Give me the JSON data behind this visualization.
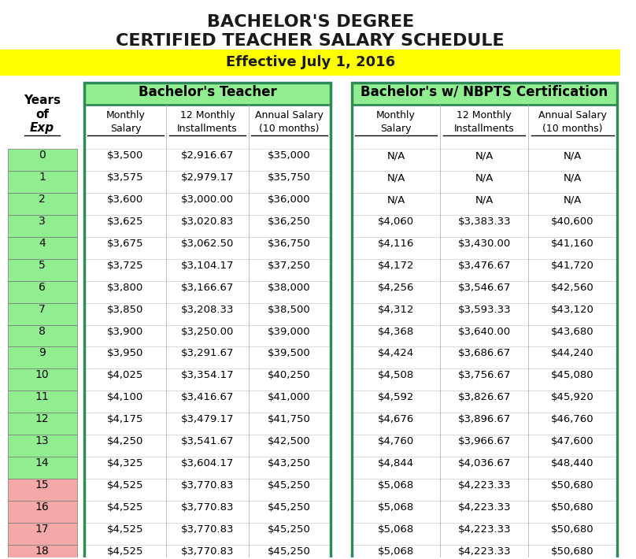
{
  "title1": "BACHELOR'S DEGREE",
  "title2": "CERTIFIED TEACHER SALARY SCHEDULE",
  "subtitle": "Effective July 1, 2016",
  "years_label": [
    "Years",
    "of",
    "Exp"
  ],
  "years": [
    0,
    1,
    2,
    3,
    4,
    5,
    6,
    7,
    8,
    9,
    10,
    11,
    12,
    13,
    14,
    15,
    16,
    17,
    18
  ],
  "bachelor_data": [
    [
      "$3,500",
      "$2,916.67",
      "$35,000"
    ],
    [
      "$3,575",
      "$2,979.17",
      "$35,750"
    ],
    [
      "$3,600",
      "$3,000.00",
      "$36,000"
    ],
    [
      "$3,625",
      "$3,020.83",
      "$36,250"
    ],
    [
      "$3,675",
      "$3,062.50",
      "$36,750"
    ],
    [
      "$3,725",
      "$3,104.17",
      "$37,250"
    ],
    [
      "$3,800",
      "$3,166.67",
      "$38,000"
    ],
    [
      "$3,850",
      "$3,208.33",
      "$38,500"
    ],
    [
      "$3,900",
      "$3,250.00",
      "$39,000"
    ],
    [
      "$3,950",
      "$3,291.67",
      "$39,500"
    ],
    [
      "$4,025",
      "$3,354.17",
      "$40,250"
    ],
    [
      "$4,100",
      "$3,416.67",
      "$41,000"
    ],
    [
      "$4,175",
      "$3,479.17",
      "$41,750"
    ],
    [
      "$4,250",
      "$3,541.67",
      "$42,500"
    ],
    [
      "$4,325",
      "$3,604.17",
      "$43,250"
    ],
    [
      "$4,525",
      "$3,770.83",
      "$45,250"
    ],
    [
      "$4,525",
      "$3,770.83",
      "$45,250"
    ],
    [
      "$4,525",
      "$3,770.83",
      "$45,250"
    ],
    [
      "$4,525",
      "$3,770.83",
      "$45,250"
    ]
  ],
  "nbpts_data": [
    [
      "N/A",
      "N/A",
      "N/A"
    ],
    [
      "N/A",
      "N/A",
      "N/A"
    ],
    [
      "N/A",
      "N/A",
      "N/A"
    ],
    [
      "$4,060",
      "$3,383.33",
      "$40,600"
    ],
    [
      "$4,116",
      "$3,430.00",
      "$41,160"
    ],
    [
      "$4,172",
      "$3,476.67",
      "$41,720"
    ],
    [
      "$4,256",
      "$3,546.67",
      "$42,560"
    ],
    [
      "$4,312",
      "$3,593.33",
      "$43,120"
    ],
    [
      "$4,368",
      "$3,640.00",
      "$43,680"
    ],
    [
      "$4,424",
      "$3,686.67",
      "$44,240"
    ],
    [
      "$4,508",
      "$3,756.67",
      "$45,080"
    ],
    [
      "$4,592",
      "$3,826.67",
      "$45,920"
    ],
    [
      "$4,676",
      "$3,896.67",
      "$46,760"
    ],
    [
      "$4,760",
      "$3,966.67",
      "$47,600"
    ],
    [
      "$4,844",
      "$4,036.67",
      "$48,440"
    ],
    [
      "$5,068",
      "$4,223.33",
      "$50,680"
    ],
    [
      "$5,068",
      "$4,223.33",
      "$50,680"
    ],
    [
      "$5,068",
      "$4,223.33",
      "$50,680"
    ],
    [
      "$5,068",
      "$4,223.33",
      "$50,680"
    ]
  ],
  "year_color_normal": "#90EE90",
  "year_color_special": "#F4A9A8",
  "header_bg": "#90EE90",
  "yellow_bg": "#FFFF00",
  "title_color": "#1a1a1a",
  "border_color": "#2E8B57",
  "special_years": [
    15,
    16,
    17,
    18
  ],
  "left_header_title": "Bachelor's Teacher",
  "right_header_title": "Bachelor's w/ NBPTS Certification",
  "sub_headers": [
    "Monthly\nSalary",
    "12 Monthly\nInstallments",
    "Annual Salary\n(10 months)"
  ]
}
